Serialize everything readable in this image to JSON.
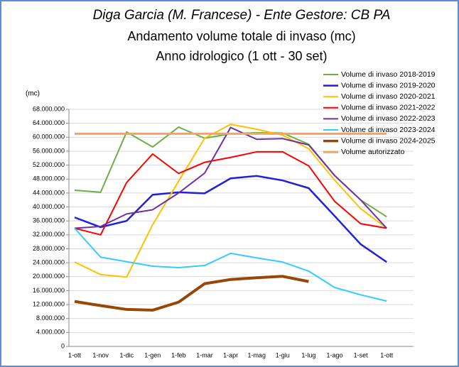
{
  "chart_data": {
    "type": "line",
    "title": "Diga Garcia (M. Francese) - Ente Gestore: CB PA",
    "subtitle": "Andamento volume totale di invaso (mc)",
    "subtitle2": "Anno idrologico (1 ott - 30 set)",
    "y_label": "(mc)",
    "categories": [
      "1-ott",
      "1-nov",
      "1-dic",
      "1-gen",
      "1-feb",
      "1-mar",
      "1-apr",
      "1-mag",
      "1-giu",
      "1-lug",
      "1-ago",
      "1-set",
      "1-ott"
    ],
    "ylim": [
      0,
      68000000
    ],
    "yticks": [
      0,
      {
        "value": 4000000,
        "label": "4.000.000"
      },
      {
        "value": 8000000,
        "label": "8.000.000"
      },
      {
        "value": 12000000,
        "label": "12.000.000"
      },
      {
        "value": 16000000,
        "label": "16.000.000"
      },
      {
        "value": 20000000,
        "label": "20.000.000"
      },
      {
        "value": 24000000,
        "label": "24.000.000"
      },
      {
        "value": 28000000,
        "label": "28.000.000"
      },
      {
        "value": 32000000,
        "label": "32.000.000"
      },
      {
        "value": 36000000,
        "label": "36.000.000"
      },
      {
        "value": 40000000,
        "label": "40.000.000"
      },
      {
        "value": 44000000,
        "label": "44.000.000"
      },
      {
        "value": 48000000,
        "label": "48.000.000"
      },
      {
        "value": 52000000,
        "label": "52.000.000"
      },
      {
        "value": 56000000,
        "label": "56.000.000"
      },
      {
        "value": 60000000,
        "label": "60.000.000"
      },
      {
        "value": 64000000,
        "label": "64.000.000"
      },
      {
        "value": 68000000,
        "label": "68.000.000"
      }
    ],
    "grid": true,
    "legend": "top-right",
    "series": [
      {
        "name": "Volume di invaso 2018-2019",
        "color": "#70ad47",
        "width": 2,
        "values": [
          44800000,
          44200000,
          61500000,
          57200000,
          62900000,
          59700000,
          61000000,
          61300000,
          61200000,
          58000000,
          49000000,
          42000000,
          37200000
        ]
      },
      {
        "name": "Volume di invaso 2019-2020",
        "color": "#1f1fe0",
        "width": 2.5,
        "values": [
          37000000,
          34200000,
          36000000,
          43500000,
          44200000,
          43900000,
          48200000,
          48900000,
          47600000,
          45400000,
          37400000,
          29300000,
          24200000
        ]
      },
      {
        "name": "Volume di invaso 2020-2021",
        "color": "#ffc000",
        "width": 2,
        "values": [
          24200000,
          20600000,
          19900000,
          34900000,
          47400000,
          59700000,
          63700000,
          62300000,
          60600000,
          56700000,
          47700000,
          39500000,
          33900000
        ]
      },
      {
        "name": "Volume di invaso 2021-2022",
        "color": "#ff0000",
        "width": 2,
        "values": [
          33900000,
          32000000,
          47000000,
          55200000,
          49600000,
          52800000,
          54200000,
          55800000,
          55800000,
          51800000,
          41600000,
          35200000,
          33900000
        ]
      },
      {
        "name": "Volume di invaso 2022-2023",
        "color": "#7030a0",
        "width": 2,
        "values": [
          33900000,
          34400000,
          38000000,
          39200000,
          44000000,
          49700000,
          62800000,
          59400000,
          59600000,
          57800000,
          49000000,
          42000000,
          33900000
        ]
      },
      {
        "name": "Volume di invaso 2023-2024",
        "color": "#33ccff",
        "width": 2,
        "values": [
          33900000,
          25600000,
          24300000,
          23000000,
          22600000,
          23200000,
          26700000,
          25400000,
          24200000,
          21600000,
          16900000,
          14800000,
          13000000
        ]
      },
      {
        "name": "Volume di invaso 2024-2025",
        "color": "#974706",
        "width": 4,
        "values": [
          12900000,
          11700000,
          10600000,
          10400000,
          12700000,
          18000000,
          19200000,
          19700000,
          20100000,
          18600000,
          null,
          null,
          null
        ]
      },
      {
        "name": "Volume autorizzato",
        "color": "#f4a460",
        "width": 3,
        "values": [
          61000000,
          61000000,
          61000000,
          61000000,
          61000000,
          61000000,
          61000000,
          61000000,
          61000000,
          61000000,
          61000000,
          61000000,
          61000000
        ]
      }
    ]
  }
}
